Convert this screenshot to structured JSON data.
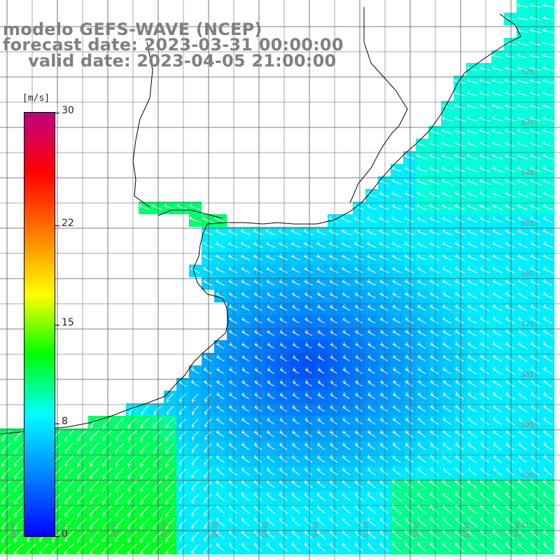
{
  "titles": {
    "line1": "modelo GEFS-WAVE (NCEP)",
    "line2": "forecast date: 2023-03-31 00:00:00",
    "line3": "valid date: 2023-04-05 21:00:00"
  },
  "colorbar": {
    "unit": "[m/s]",
    "ticks": [
      "30",
      "22",
      "15",
      "8",
      "0"
    ],
    "tick_values": [
      30,
      22,
      15,
      8,
      0
    ],
    "range": [
      0,
      30
    ],
    "colors": [
      "#0000ff",
      "#0080ff",
      "#00ffff",
      "#00ff00",
      "#ffff00",
      "#ff8000",
      "#ff0000",
      "#c00080"
    ]
  },
  "map": {
    "lat_labels": [
      "32S",
      "33S",
      "34S",
      "35S",
      "36S",
      "37S",
      "38S",
      "39S",
      "40S",
      "41S"
    ],
    "lon_labels": [
      "60W",
      "59W",
      "58W",
      "57W",
      "56W",
      "55W",
      "54W",
      "53W",
      "52W",
      "51W",
      "50W"
    ],
    "lat_range": [
      -41.5,
      -31
    ],
    "lon_range": [
      -60.5,
      -49.5
    ],
    "grid": true,
    "colors": {
      "land": "#ffffff",
      "coast": "#000000",
      "grid": "#555555",
      "arrow": "#ffffff"
    }
  }
}
